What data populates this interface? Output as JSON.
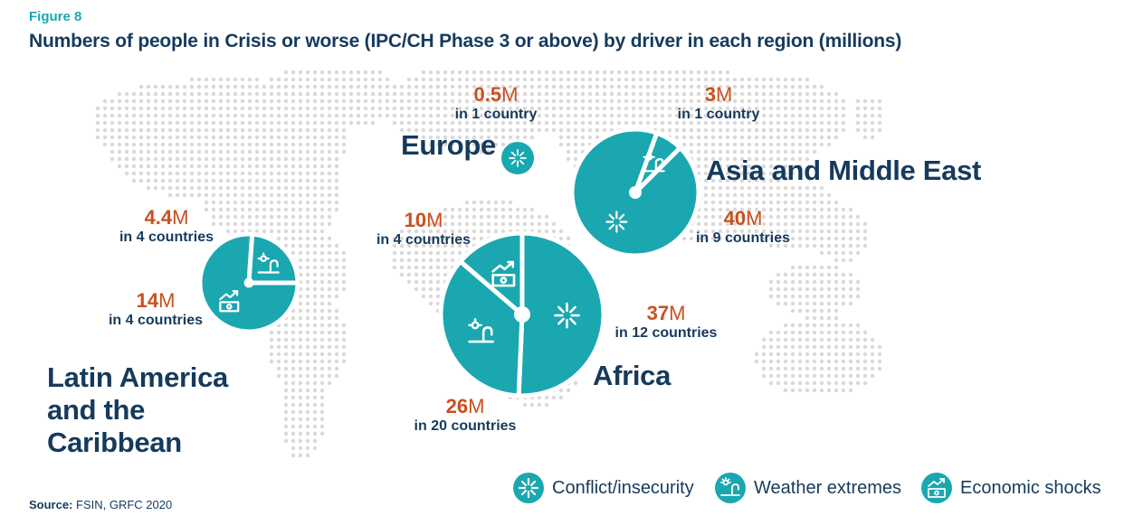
{
  "figure_label": "Figure 8",
  "title": "Numbers of people in Crisis or worse (IPC/CH Phase 3 or above) by driver in each region (millions)",
  "source_label": "Source:",
  "source_text": "FSIN, GRFC 2020",
  "colors": {
    "teal": "#1aa7b0",
    "navy": "#163a5c",
    "orange": "#c9501f",
    "map_dots": "#d9d9d9"
  },
  "legend": [
    {
      "label": "Conflict/insecurity",
      "icon": "conflict-icon"
    },
    {
      "label": "Weather extremes",
      "icon": "weather-icon"
    },
    {
      "label": "Economic shocks",
      "icon": "economic-icon"
    }
  ],
  "regions": {
    "europe": {
      "name": "Europe"
    },
    "asia": {
      "name": "Asia and Middle East"
    },
    "latam": {
      "line1": "Latin America",
      "line2": "and the",
      "line3": "Caribbean"
    },
    "africa": {
      "name": "Africa"
    }
  },
  "callouts": {
    "europe_conflict": {
      "num": "0.5",
      "unit": "M",
      "countries": "in 1 country"
    },
    "asia_weather": {
      "num": "3",
      "unit": "M",
      "countries": "in 1 country"
    },
    "asia_conflict": {
      "num": "40",
      "unit": "M",
      "countries": "in 9 countries"
    },
    "latam_weather": {
      "num": "4.4",
      "unit": "M",
      "countries": "in 4 countries"
    },
    "latam_economic": {
      "num": "14",
      "unit": "M",
      "countries": "in 4 countries"
    },
    "africa_economic": {
      "num": "10",
      "unit": "M",
      "countries": "in 4 countries"
    },
    "africa_conflict": {
      "num": "37",
      "unit": "M",
      "countries": "in 12 countries"
    },
    "africa_weather": {
      "num": "26",
      "unit": "M",
      "countries": "in 20 countries"
    }
  },
  "chart_data": {
    "type": "pie",
    "title": "Numbers of people in Crisis or worse (IPC/CH Phase 3 or above) by driver in each region (millions)",
    "unit": "millions",
    "drivers": [
      "Conflict/insecurity",
      "Weather extremes",
      "Economic shocks"
    ],
    "pies": [
      {
        "region": "Europe",
        "slices": [
          {
            "driver": "Conflict/insecurity",
            "value": 0.5,
            "countries": 1
          }
        ]
      },
      {
        "region": "Asia and Middle East",
        "slices": [
          {
            "driver": "Conflict/insecurity",
            "value": 40,
            "countries": 9
          },
          {
            "driver": "Weather extremes",
            "value": 3,
            "countries": 1
          }
        ]
      },
      {
        "region": "Latin America and the Caribbean",
        "slices": [
          {
            "driver": "Economic shocks",
            "value": 14,
            "countries": 4
          },
          {
            "driver": "Weather extremes",
            "value": 4.4,
            "countries": 4
          }
        ]
      },
      {
        "region": "Africa",
        "slices": [
          {
            "driver": "Conflict/insecurity",
            "value": 37,
            "countries": 12
          },
          {
            "driver": "Weather extremes",
            "value": 26,
            "countries": 20
          },
          {
            "driver": "Economic shocks",
            "value": 10,
            "countries": 4
          }
        ]
      }
    ]
  }
}
